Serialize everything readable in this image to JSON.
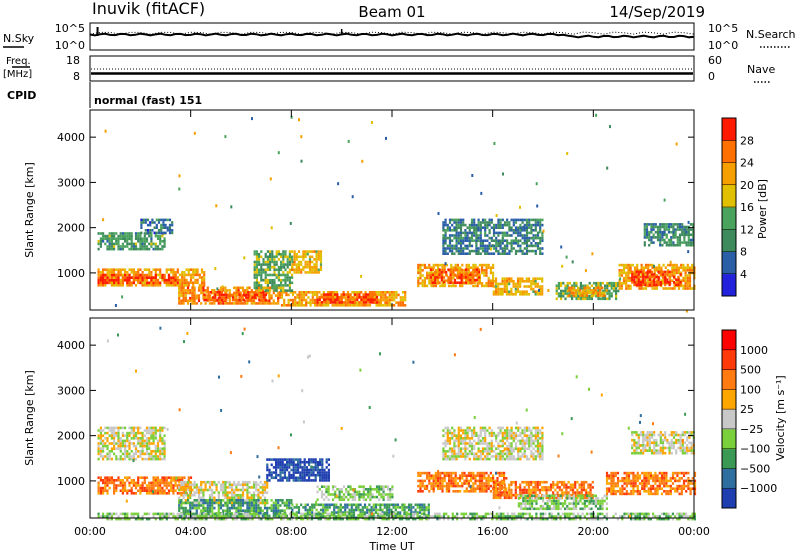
{
  "header": {
    "station": "Inuvik (fitACF)",
    "beam": "Beam 01",
    "date": "14/Sep/2019"
  },
  "top_panels": {
    "nsky_label": "N.Sky",
    "nsky_ticks": [
      "10^5",
      "10^0"
    ],
    "nsearch_label": "N.Search",
    "nsearch_ticks": [
      "10^5",
      "10^0"
    ],
    "freq_label": "Freq.",
    "freq_unit": "[MHz]",
    "freq_ticks": [
      "18",
      "8"
    ],
    "nave_label": "Nave",
    "nave_ticks": [
      "60",
      "0"
    ],
    "cpid_label": "CPID",
    "cpid_text": "normal (fast) 151"
  },
  "colors": {
    "power_scale": [
      "#2222dd",
      "#2a5fa8",
      "#3d8a5c",
      "#4aa35c",
      "#e0c000",
      "#f5a000",
      "#ff7000",
      "#ff1a00"
    ],
    "velocity_scale": [
      "#1f3fb0",
      "#2f6fa0",
      "#3a9a55",
      "#7ad03a",
      "#c8c8c8",
      "#ffa500",
      "#ff7a10",
      "#ff3a0a",
      "#ff0000"
    ]
  },
  "chart_data": [
    {
      "type": "heatmap",
      "name": "power",
      "ylabel": "Slant Range [km]",
      "yticks": [
        "4000",
        "3000",
        "2000",
        "1000"
      ],
      "ylim": [
        180,
        4600
      ],
      "x_ticks": [
        "00:00",
        "04:00",
        "08:00",
        "12:00",
        "16:00",
        "20:00",
        "00:00"
      ],
      "colorbar": {
        "label": "Power [dB]",
        "ticks": [
          "28",
          "24",
          "20",
          "16",
          "12",
          "8",
          "4"
        ],
        "range": [
          0,
          32
        ]
      },
      "regions": [
        {
          "t": [
            0.3,
            4.5
          ],
          "r": [
            700,
            1100
          ],
          "v": 22
        },
        {
          "t": [
            0.3,
            3.5
          ],
          "r": [
            780,
            980
          ],
          "v": 29
        },
        {
          "t": [
            0.3,
            3.0
          ],
          "r": [
            1500,
            1900
          ],
          "v": 12
        },
        {
          "t": [
            2.0,
            3.3
          ],
          "r": [
            1900,
            2200
          ],
          "v": 8
        },
        {
          "t": [
            3.5,
            7.5
          ],
          "r": [
            300,
            700
          ],
          "v": 24
        },
        {
          "t": [
            4.5,
            7.0
          ],
          "r": [
            400,
            600
          ],
          "v": 28
        },
        {
          "t": [
            7.5,
            12.5
          ],
          "r": [
            300,
            600
          ],
          "v": 22
        },
        {
          "t": [
            9.0,
            11.5
          ],
          "r": [
            350,
            550
          ],
          "v": 28
        },
        {
          "t": [
            6.5,
            8.0
          ],
          "r": [
            600,
            1500
          ],
          "v": 14
        },
        {
          "t": [
            8.0,
            9.2
          ],
          "r": [
            1000,
            1500
          ],
          "v": 20
        },
        {
          "t": [
            13.0,
            16.0
          ],
          "r": [
            700,
            1200
          ],
          "v": 22
        },
        {
          "t": [
            13.5,
            15.5
          ],
          "r": [
            800,
            1100
          ],
          "v": 27
        },
        {
          "t": [
            16.0,
            18.0
          ],
          "r": [
            500,
            900
          ],
          "v": 20
        },
        {
          "t": [
            18.5,
            21.0
          ],
          "r": [
            400,
            800
          ],
          "v": 14
        },
        {
          "t": [
            19.0,
            20.5
          ],
          "r": [
            500,
            700
          ],
          "v": 22
        },
        {
          "t": [
            21.0,
            24.0
          ],
          "r": [
            650,
            1200
          ],
          "v": 22
        },
        {
          "t": [
            21.5,
            23.5
          ],
          "r": [
            750,
            1050
          ],
          "v": 29
        },
        {
          "t": [
            14.0,
            18.0
          ],
          "r": [
            1400,
            2200
          ],
          "v": 9
        },
        {
          "t": [
            22.0,
            24.0
          ],
          "r": [
            1600,
            2100
          ],
          "v": 10
        }
      ]
    },
    {
      "type": "heatmap",
      "name": "velocity",
      "ylabel": "Slant Range [km]",
      "yticks": [
        "4000",
        "3000",
        "2000",
        "1000"
      ],
      "ylim": [
        180,
        4600
      ],
      "xlabel": "Time UT",
      "x_ticks": [
        "00:00",
        "04:00",
        "08:00",
        "12:00",
        "16:00",
        "20:00",
        "00:00"
      ],
      "colorbar": {
        "label": "Velocity [m s⁻¹]",
        "ticks": [
          "1000",
          "500",
          "100",
          "25",
          "−25",
          "−100",
          "−500",
          "−1000"
        ]
      },
      "regions": [
        {
          "t": [
            0.3,
            4.0
          ],
          "r": [
            700,
            1100
          ],
          "c": 6
        },
        {
          "t": [
            0.3,
            3.0
          ],
          "r": [
            1500,
            2200
          ],
          "c": 4
        },
        {
          "t": [
            3.5,
            7.0
          ],
          "r": [
            500,
            1000
          ],
          "c": 4
        },
        {
          "t": [
            3.5,
            8.0
          ],
          "r": [
            250,
            600
          ],
          "c": 2
        },
        {
          "t": [
            7.0,
            9.5
          ],
          "r": [
            1000,
            1500
          ],
          "c": 0
        },
        {
          "t": [
            8.0,
            13.5
          ],
          "r": [
            200,
            500
          ],
          "c": 2
        },
        {
          "t": [
            9.0,
            12.0
          ],
          "r": [
            600,
            900
          ],
          "c": 3
        },
        {
          "t": [
            13.0,
            16.5
          ],
          "r": [
            750,
            1200
          ],
          "c": 6
        },
        {
          "t": [
            16.0,
            20.0
          ],
          "r": [
            650,
            1000
          ],
          "c": 6
        },
        {
          "t": [
            17.0,
            20.5
          ],
          "r": [
            400,
            700
          ],
          "c": 3
        },
        {
          "t": [
            20.5,
            24.0
          ],
          "r": [
            700,
            1200
          ],
          "c": 6
        },
        {
          "t": [
            14.0,
            18.0
          ],
          "r": [
            1500,
            2200
          ],
          "c": 4
        },
        {
          "t": [
            21.5,
            24.0
          ],
          "r": [
            1600,
            2100
          ],
          "c": 4
        },
        {
          "t": [
            0.3,
            24.0
          ],
          "r": [
            180,
            300
          ],
          "c": 3
        }
      ]
    }
  ]
}
